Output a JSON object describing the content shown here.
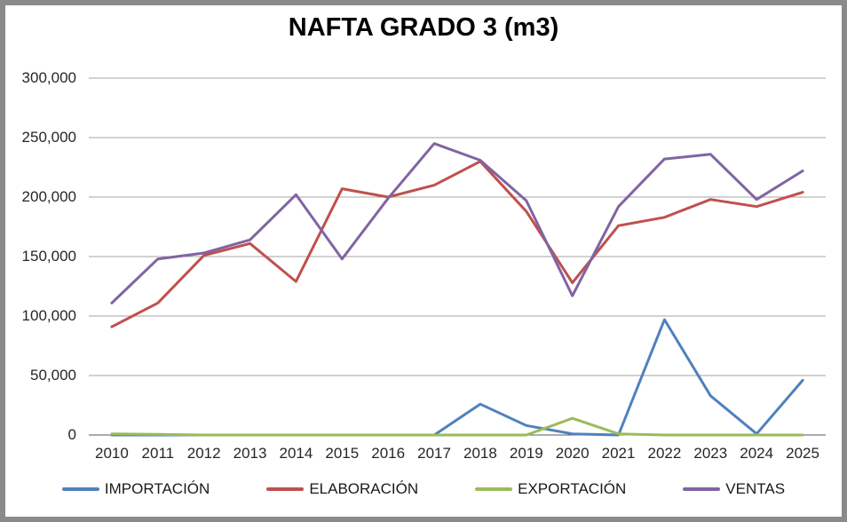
{
  "window": {
    "frame_color": "#8a8a8a",
    "background_color": "#ffffff"
  },
  "chart_data": {
    "type": "line",
    "title": "NAFTA GRADO 3 (m3)",
    "categories": [
      "2010",
      "2011",
      "2012",
      "2013",
      "2014",
      "2015",
      "2016",
      "2017",
      "2018",
      "2019",
      "2020",
      "2021",
      "2022",
      "2023",
      "2024",
      "2025"
    ],
    "series": [
      {
        "id": "importacion",
        "name": "IMPORTACIÓN",
        "color": "#4F81BD",
        "values": [
          0,
          0,
          0,
          0,
          0,
          0,
          0,
          0,
          26000,
          8000,
          1000,
          0,
          97000,
          33000,
          1000,
          46000
        ]
      },
      {
        "id": "elaboracion",
        "name": "ELABORACIÓN",
        "color": "#C0504D",
        "values": [
          91000,
          111000,
          151000,
          161000,
          129000,
          207000,
          200000,
          210000,
          230000,
          188000,
          128000,
          176000,
          183000,
          198000,
          192000,
          204000
        ]
      },
      {
        "id": "exportacion",
        "name": "EXPORTACIÓN",
        "color": "#9BBB59",
        "values": [
          1000,
          500,
          0,
          0,
          0,
          0,
          0,
          0,
          0,
          0,
          14000,
          1000,
          0,
          0,
          0,
          0
        ]
      },
      {
        "id": "ventas",
        "name": "VENTAS",
        "color": "#8064A2",
        "values": [
          111000,
          148000,
          153000,
          164000,
          202000,
          148000,
          199000,
          245000,
          231000,
          197000,
          117000,
          192000,
          232000,
          236000,
          198000,
          222000
        ]
      }
    ],
    "xlabel": "",
    "ylabel": "",
    "ylim": [
      0,
      300000
    ],
    "ytick_step": 50000,
    "ytick_labels": [
      "0",
      "50,000",
      "100,000",
      "150,000",
      "200,000",
      "250,000",
      "300,000"
    ],
    "grid": true,
    "legend_position": "bottom",
    "style": {
      "gridline_color": "#A6A6A6",
      "axis_line_color": "#595959",
      "tick_label_color": "#262626",
      "line_width": 3
    }
  }
}
